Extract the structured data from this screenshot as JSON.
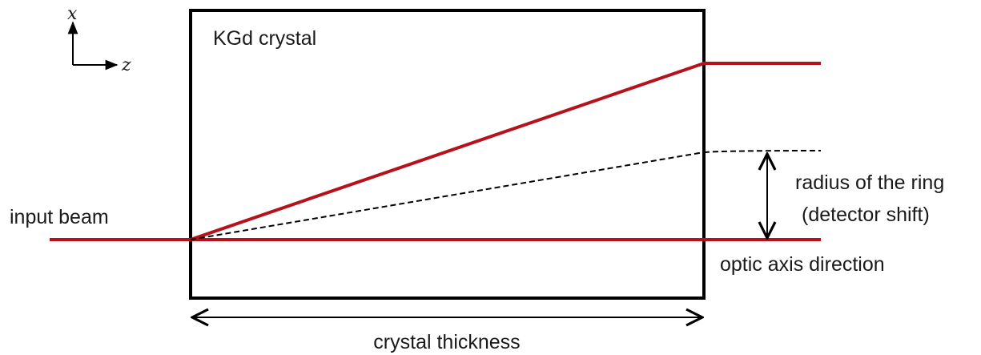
{
  "diagram": {
    "title_crystal": "KGd crystal",
    "axis_x": "x",
    "axis_z": "z",
    "input_beam": "input beam",
    "radius_line1": "radius of the ring",
    "radius_line2": "(detector shift)",
    "optic_axis": "optic axis direction",
    "thickness": "crystal thickness"
  },
  "colors": {
    "beam": "#b5121b",
    "outline": "#000000"
  }
}
